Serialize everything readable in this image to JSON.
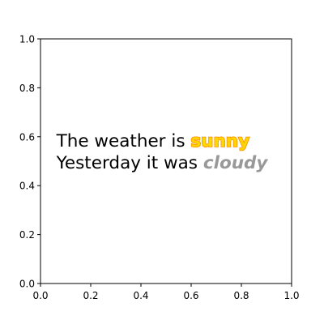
{
  "chart_data": {
    "type": "scatter",
    "title": "",
    "xlabel": "",
    "ylabel": "",
    "xlim": [
      0,
      1
    ],
    "ylim": [
      0,
      1
    ],
    "grid": false,
    "x_ticks": [
      "0.0",
      "0.2",
      "0.4",
      "0.6",
      "0.8",
      "1.0"
    ],
    "y_ticks": [
      "0.0",
      "0.2",
      "0.4",
      "0.6",
      "0.8",
      "1.0"
    ],
    "annotations": [
      {
        "x": 0.06,
        "y": 0.56,
        "segments": [
          {
            "text": "The weather is ",
            "style": "normal"
          },
          {
            "text": "sunny",
            "style": "bold",
            "color": "#ffd700",
            "outline": "#ff8c00"
          }
        ]
      },
      {
        "x": 0.06,
        "y": 0.47,
        "segments": [
          {
            "text": "Yesterday it was ",
            "style": "normal"
          },
          {
            "text": "cloudy",
            "style": "bold-italic",
            "color": "#999999"
          }
        ]
      }
    ],
    "colors": {
      "axes": "#000000",
      "text": "#000000",
      "background": "#ffffff"
    }
  }
}
